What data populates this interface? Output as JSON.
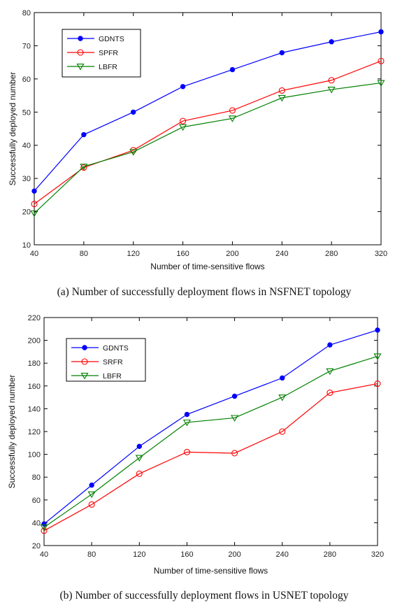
{
  "chart_data": [
    {
      "type": "line",
      "caption": "(a) Number of successfully deployment flows in NSFNET topology",
      "xlabel": "Number of time-sensitive flows",
      "ylabel": "Successfully deployed number",
      "x": [
        40,
        80,
        120,
        160,
        200,
        240,
        280,
        320
      ],
      "xlim": [
        40,
        320
      ],
      "ylim": [
        10,
        80
      ],
      "yticks": [
        10,
        20,
        30,
        40,
        50,
        60,
        70,
        80
      ],
      "grid": false,
      "legend": "top-left",
      "series": [
        {
          "name": "GDNTS",
          "color": "#0000ff",
          "marker": "dot",
          "values": [
            26.2,
            43.2,
            50.0,
            57.7,
            62.8,
            67.9,
            71.2,
            74.2
          ]
        },
        {
          "name": "SPFR",
          "color": "#ff0000",
          "marker": "circle",
          "values": [
            22.3,
            33.3,
            38.5,
            47.3,
            50.5,
            56.5,
            59.6,
            65.4
          ]
        },
        {
          "name": "LBFR",
          "color": "#008000",
          "marker": "triangle",
          "values": [
            19.5,
            33.6,
            38.0,
            45.5,
            48.1,
            54.3,
            56.8,
            58.8
          ]
        }
      ]
    },
    {
      "type": "line",
      "caption": "(b) Number of successfully deployment flows in USNET topology",
      "xlabel": "Number of time-sensitive flows",
      "ylabel": "Successfully deployed number",
      "x": [
        40,
        80,
        120,
        160,
        200,
        240,
        280,
        320
      ],
      "xlim": [
        40,
        320
      ],
      "ylim": [
        20,
        220
      ],
      "yticks": [
        20,
        40,
        60,
        80,
        100,
        120,
        140,
        160,
        180,
        200,
        220
      ],
      "grid": false,
      "legend": "top-left",
      "series": [
        {
          "name": "GDNTS",
          "color": "#0000ff",
          "marker": "dot",
          "values": [
            39,
            73,
            107,
            135,
            151,
            167,
            196,
            209
          ]
        },
        {
          "name": "SRFR",
          "color": "#ff0000",
          "marker": "circle",
          "values": [
            33,
            56,
            83,
            102,
            101,
            120,
            154,
            162
          ]
        },
        {
          "name": "LBFR",
          "color": "#008000",
          "marker": "triangle",
          "values": [
            36,
            65,
            97,
            128,
            132,
            150,
            173,
            186
          ]
        }
      ]
    }
  ]
}
